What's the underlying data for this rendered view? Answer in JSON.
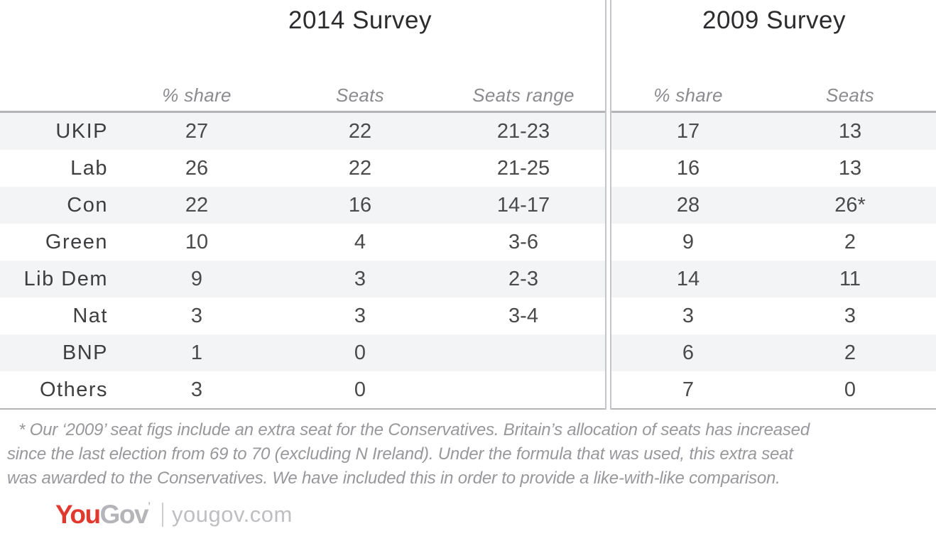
{
  "header": {
    "title_2014": "2014 Survey",
    "title_2009": "2009 Survey"
  },
  "columns": {
    "share_2014": "% share",
    "seats_2014": "Seats",
    "range_2014": "Seats range",
    "share_2009": "% share",
    "seats_2009": "Seats"
  },
  "table": {
    "rows": [
      [
        "UKIP",
        "27",
        "22",
        "21-23",
        "17",
        "13"
      ],
      [
        "Lab",
        "26",
        "22",
        "21-25",
        "16",
        "13"
      ],
      [
        "Con",
        "22",
        "16",
        "14-17",
        "28",
        "26*"
      ],
      [
        "Green",
        "10",
        "4",
        "3-6",
        "9",
        "2"
      ],
      [
        "Lib Dem",
        "9",
        "3",
        "2-3",
        "14",
        "11"
      ],
      [
        "Nat",
        "3",
        "3",
        "3-4",
        "3",
        "3"
      ],
      [
        "BNP",
        "1",
        "0",
        "",
        "6",
        "2"
      ],
      [
        "Others",
        "3",
        "0",
        "",
        "7",
        "0"
      ]
    ]
  },
  "footnote": {
    "lines": [
      "* Our ‘2009’ seat figs include an extra seat for the Conservatives. Britain’s allocation of seats has increased",
      "since the last election from 69 to 70 (excluding N Ireland). Under the formula that was used, this extra seat",
      "was awarded to the Conservatives. We have included this in order to provide a like-with-like comparison."
    ]
  },
  "footer": {
    "logo_you": "You",
    "logo_gov": "Gov",
    "logo_mark": "’",
    "site": "yougov.com"
  },
  "colors": {
    "brand_red": "#e1392d",
    "brand_gray": "#b5b5b9",
    "stripe": "#f3f4f6",
    "rule": "#b4b4b8",
    "header_text": "#8b8b8f",
    "value_text": "#4a4a4c"
  },
  "chart_data": {
    "type": "table",
    "column_groups": [
      {
        "label": "2014 Survey",
        "columns": [
          "% share",
          "Seats",
          "Seats range"
        ]
      },
      {
        "label": "2009 Survey",
        "columns": [
          "% share",
          "Seats"
        ]
      }
    ],
    "row_labels": [
      "UKIP",
      "Lab",
      "Con",
      "Green",
      "Lib Dem",
      "Nat",
      "BNP",
      "Others"
    ],
    "rows": [
      [
        "27",
        "22",
        "21-23",
        "17",
        "13"
      ],
      [
        "26",
        "22",
        "21-25",
        "16",
        "13"
      ],
      [
        "22",
        "16",
        "14-17",
        "28",
        "26*"
      ],
      [
        "10",
        "4",
        "3-6",
        "9",
        "2"
      ],
      [
        "9",
        "3",
        "2-3",
        "14",
        "11"
      ],
      [
        "3",
        "3",
        "3-4",
        "3",
        "3"
      ],
      [
        "1",
        "0",
        "",
        "6",
        "2"
      ],
      [
        "3",
        "0",
        "",
        "7",
        "0"
      ]
    ],
    "annotations": [
      "* Our ‘2009’ seat figs include an extra seat for the Conservatives. Britain’s allocation of seats has increased since the last election from 69 to 70 (excluding N Ireland). Under the formula that was used, this extra seat was awarded to the Conservatives. We have included this in order to provide a like-with-like comparison."
    ],
    "source": "yougov.com",
    "layout": {
      "grid": "alternating-row-stripes",
      "group_divider": "double-vertical-line"
    }
  }
}
